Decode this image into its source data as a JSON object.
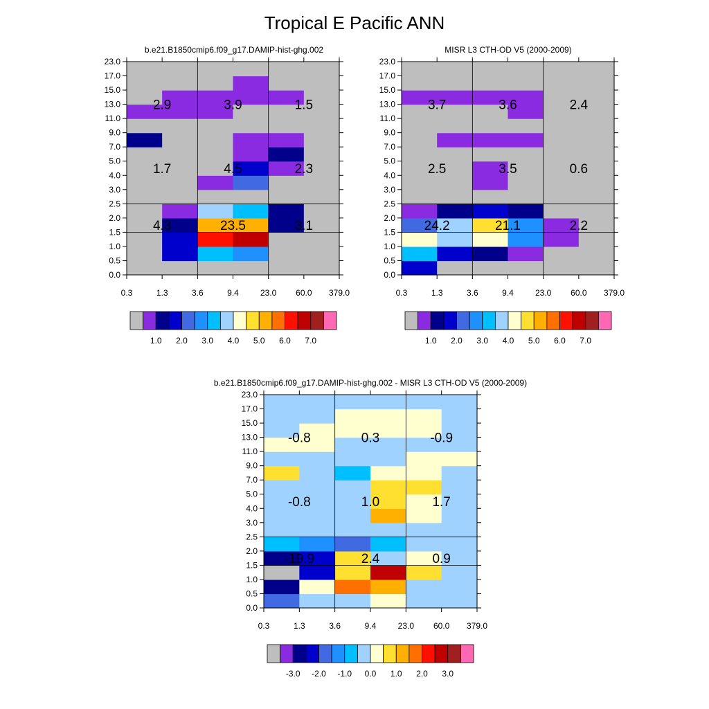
{
  "page_title": "Tropical E Pacific ANN",
  "chart_data": [
    {
      "type": "heatmap",
      "id": "model",
      "title": "b.e21.B1850cmip6.f09_g17.DAMIP-hist-ghg.002",
      "xticks": [
        "0.3",
        "1.3",
        "3.6",
        "9.4",
        "23.0",
        "60.0",
        "379.0"
      ],
      "yticks": [
        "0.0",
        "0.5",
        "1.0",
        "1.5",
        "2.0",
        "2.5",
        "3.0",
        "4.0",
        "5.0",
        "7.0",
        "9.0",
        "11.0",
        "13.0",
        "15.0",
        "17.0",
        "23.0"
      ],
      "grid_x_at": [
        2,
        4
      ],
      "grid_y_at": [
        3,
        5
      ],
      "cells": [
        [
          0,
          0,
          0,
          0,
          0,
          0
        ],
        [
          0,
          0,
          0,
          0,
          0,
          0
        ],
        [
          0,
          0,
          0,
          2,
          0,
          0
        ],
        [
          1,
          1,
          0,
          2,
          0,
          0
        ],
        [
          0,
          0,
          1,
          2,
          0,
          0
        ],
        [
          0,
          0,
          0,
          0,
          0,
          0
        ],
        [
          0,
          0,
          0,
          0,
          0,
          0
        ],
        [
          0,
          0,
          0,
          0,
          0,
          0
        ],
        [
          0,
          0,
          2,
          2,
          1,
          0
        ],
        [
          0,
          0,
          0,
          0,
          0,
          0
        ],
        [
          0,
          0,
          0,
          0,
          0,
          0
        ],
        [
          0,
          0,
          0,
          0,
          0,
          0
        ],
        [
          0,
          0,
          0,
          0,
          0,
          0
        ],
        [
          0,
          0,
          0,
          0,
          0,
          0
        ],
        [
          0,
          0,
          0,
          0,
          0,
          0
        ],
        [
          0,
          0,
          0,
          0,
          0,
          0
        ]
      ],
      "cell_colors": [
        [
          0,
          0,
          0,
          0,
          0,
          0
        ],
        [
          0,
          3,
          6,
          5,
          0,
          0
        ],
        [
          0,
          3,
          12,
          13,
          0,
          0
        ],
        [
          0,
          2,
          10,
          10,
          2,
          0
        ],
        [
          0,
          1,
          7,
          6,
          2,
          0
        ],
        [
          0,
          0,
          0,
          0,
          0,
          0
        ],
        [
          0,
          0,
          1,
          4,
          0,
          0
        ],
        [
          0,
          0,
          0,
          3,
          1,
          0
        ],
        [
          0,
          0,
          0,
          1,
          2,
          0
        ],
        [
          2,
          0,
          0,
          1,
          1,
          0
        ],
        [
          0,
          0,
          0,
          0,
          0,
          0
        ],
        [
          1,
          1,
          1,
          0,
          0,
          0
        ],
        [
          0,
          1,
          1,
          1,
          1,
          0
        ],
        [
          0,
          0,
          0,
          1,
          0,
          0
        ],
        [
          0,
          0,
          0,
          0,
          0,
          0
        ],
        [
          0,
          0,
          0,
          0,
          0,
          0
        ]
      ],
      "block_values": [
        {
          "label": "2.9",
          "block": [
            0,
            2
          ]
        },
        {
          "label": "3.9",
          "block": [
            1,
            2
          ]
        },
        {
          "label": "1.5",
          "block": [
            2,
            2
          ]
        },
        {
          "label": "1.7",
          "block": [
            0,
            1
          ]
        },
        {
          "label": "4.5",
          "block": [
            1,
            1
          ]
        },
        {
          "label": "2.3",
          "block": [
            2,
            1
          ]
        },
        {
          "label": "4.3",
          "block": [
            0,
            0
          ]
        },
        {
          "label": "23.5",
          "block": [
            1,
            0
          ]
        },
        {
          "label": "3.1",
          "block": [
            2,
            0
          ]
        }
      ],
      "colorbar": {
        "colors": [
          "#bebebe",
          "#8a2be2",
          "#00008b",
          "#0000cd",
          "#4169e1",
          "#1e90ff",
          "#00bfff",
          "#a0d2ff",
          "#ffffd0",
          "#ffe030",
          "#ffb000",
          "#ff7000",
          "#ff1000",
          "#c00000",
          "#a02020",
          "#ff69b4"
        ],
        "labels": [
          "1.0",
          "2.0",
          "3.0",
          "4.0",
          "5.0",
          "6.0",
          "7.0"
        ],
        "label_boxes": [
          2,
          4,
          6,
          8,
          10,
          12,
          14
        ]
      }
    },
    {
      "type": "heatmap",
      "id": "obs",
      "title": "MISR L3 CTH-OD V5 (2000-2009)",
      "xticks": [
        "0.3",
        "1.3",
        "3.6",
        "9.4",
        "23.0",
        "60.0",
        "379.0"
      ],
      "yticks": [
        "0.0",
        "0.5",
        "1.0",
        "1.5",
        "2.0",
        "2.5",
        "3.0",
        "4.0",
        "5.0",
        "7.0",
        "9.0",
        "11.0",
        "13.0",
        "15.0",
        "17.0",
        "23.0"
      ],
      "grid_x_at": [
        2,
        4
      ],
      "grid_y_at": [
        3,
        5
      ],
      "cell_colors": [
        [
          3,
          0,
          0,
          0,
          0,
          0
        ],
        [
          6,
          3,
          2,
          1,
          0,
          0
        ],
        [
          8,
          7,
          8,
          5,
          1,
          0
        ],
        [
          4,
          7,
          9,
          5,
          1,
          0
        ],
        [
          1,
          2,
          3,
          2,
          0,
          0
        ],
        [
          0,
          0,
          0,
          0,
          0,
          0
        ],
        [
          0,
          0,
          1,
          0,
          0,
          0
        ],
        [
          0,
          0,
          1,
          0,
          0,
          0
        ],
        [
          0,
          0,
          0,
          0,
          0,
          0
        ],
        [
          0,
          1,
          1,
          1,
          0,
          0
        ],
        [
          0,
          0,
          0,
          0,
          0,
          0
        ],
        [
          0,
          0,
          0,
          1,
          0,
          0
        ],
        [
          1,
          1,
          1,
          1,
          0,
          0
        ],
        [
          0,
          0,
          0,
          0,
          0,
          0
        ],
        [
          0,
          0,
          0,
          0,
          0,
          0
        ],
        [
          0,
          0,
          0,
          0,
          0,
          0
        ]
      ],
      "block_values": [
        {
          "label": "3.7",
          "block": [
            0,
            2
          ]
        },
        {
          "label": "3.6",
          "block": [
            1,
            2
          ]
        },
        {
          "label": "2.4",
          "block": [
            2,
            2
          ]
        },
        {
          "label": "2.5",
          "block": [
            0,
            1
          ]
        },
        {
          "label": "3.5",
          "block": [
            1,
            1
          ]
        },
        {
          "label": "0.6",
          "block": [
            2,
            1
          ]
        },
        {
          "label": "24.2",
          "block": [
            0,
            0
          ]
        },
        {
          "label": "21.1",
          "block": [
            1,
            0
          ]
        },
        {
          "label": "2.2",
          "block": [
            2,
            0
          ]
        }
      ],
      "colorbar": {
        "colors": [
          "#bebebe",
          "#8a2be2",
          "#00008b",
          "#0000cd",
          "#4169e1",
          "#1e90ff",
          "#00bfff",
          "#a0d2ff",
          "#ffffd0",
          "#ffe030",
          "#ffb000",
          "#ff7000",
          "#ff1000",
          "#c00000",
          "#a02020",
          "#ff69b4"
        ],
        "labels": [
          "1.0",
          "2.0",
          "3.0",
          "4.0",
          "5.0",
          "6.0",
          "7.0"
        ],
        "label_boxes": [
          2,
          4,
          6,
          8,
          10,
          12,
          14
        ]
      }
    },
    {
      "type": "heatmap",
      "id": "diff",
      "title": "b.e21.B1850cmip6.f09_g17.DAMIP-hist-ghg.002 - MISR L3 CTH-OD V5 (2000-2009)",
      "xticks": [
        "0.3",
        "1.3",
        "3.6",
        "9.4",
        "23.0",
        "60.0",
        "379.0"
      ],
      "yticks": [
        "0.0",
        "0.5",
        "1.0",
        "1.5",
        "2.0",
        "2.5",
        "3.0",
        "4.0",
        "5.0",
        "7.0",
        "9.0",
        "11.0",
        "13.0",
        "15.0",
        "17.0",
        "23.0"
      ],
      "grid_x_at": [
        2,
        4
      ],
      "grid_y_at": [
        3,
        5
      ],
      "cell_colors": [
        [
          4,
          7,
          7,
          8,
          7,
          7
        ],
        [
          2,
          8,
          11,
          10,
          7,
          7
        ],
        [
          0,
          3,
          9,
          13,
          9,
          7
        ],
        [
          2,
          3,
          9,
          7,
          8,
          7
        ],
        [
          6,
          5,
          4,
          6,
          7,
          7
        ],
        [
          7,
          7,
          7,
          7,
          7,
          7
        ],
        [
          7,
          7,
          7,
          10,
          8,
          7
        ],
        [
          7,
          7,
          7,
          9,
          8,
          7
        ],
        [
          7,
          7,
          7,
          9,
          9,
          7
        ],
        [
          9,
          7,
          6,
          8,
          8,
          7
        ],
        [
          7,
          7,
          7,
          7,
          8,
          8
        ],
        [
          8,
          8,
          7,
          7,
          7,
          7
        ],
        [
          7,
          8,
          8,
          8,
          8,
          7
        ],
        [
          7,
          7,
          8,
          8,
          8,
          7
        ],
        [
          7,
          7,
          7,
          7,
          7,
          7
        ],
        [
          7,
          7,
          7,
          7,
          7,
          7
        ]
      ],
      "block_values": [
        {
          "label": "-0.8",
          "block": [
            0,
            2
          ]
        },
        {
          "label": "0.3",
          "block": [
            1,
            2
          ]
        },
        {
          "label": "-0.9",
          "block": [
            2,
            2
          ]
        },
        {
          "label": "-0.8",
          "block": [
            0,
            1
          ]
        },
        {
          "label": "1.0",
          "block": [
            1,
            1
          ]
        },
        {
          "label": "1.7",
          "block": [
            2,
            1
          ]
        },
        {
          "label": "-19.9",
          "block": [
            0,
            0
          ]
        },
        {
          "label": "2.4",
          "block": [
            1,
            0
          ]
        },
        {
          "label": "0.9",
          "block": [
            2,
            0
          ]
        }
      ],
      "colorbar": {
        "colors": [
          "#bebebe",
          "#8a2be2",
          "#00008b",
          "#0000cd",
          "#4169e1",
          "#1e90ff",
          "#00bfff",
          "#a0d2ff",
          "#ffffd0",
          "#ffe030",
          "#ffb000",
          "#ff7000",
          "#ff1000",
          "#c00000",
          "#a02020",
          "#ff69b4"
        ],
        "labels": [
          "-3.0",
          "-2.0",
          "-1.0",
          "0.0",
          "1.0",
          "2.0",
          "3.0"
        ],
        "label_boxes": [
          2,
          4,
          6,
          8,
          10,
          12,
          14
        ]
      }
    }
  ]
}
